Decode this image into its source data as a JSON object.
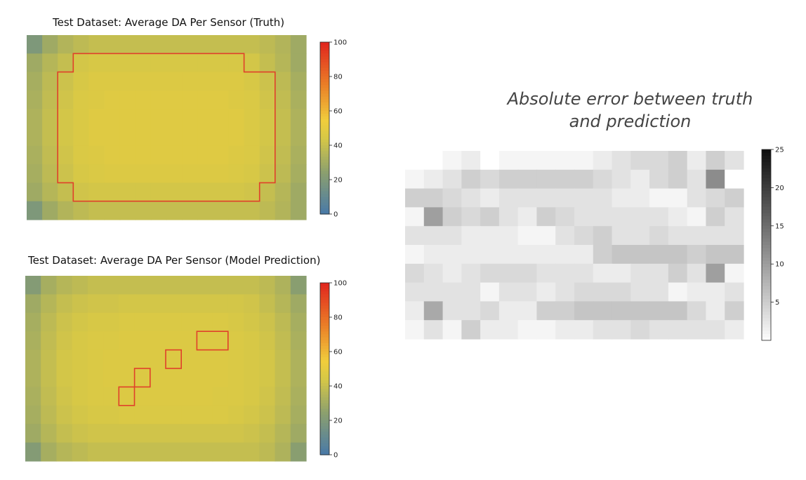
{
  "chart_data": [
    {
      "type": "heatmap",
      "title": "Test Dataset: Average  DA Per Sensor (Truth)",
      "colormap": "blue-yellow-red",
      "colorbar": {
        "min": 0,
        "max": 100,
        "ticks": [
          0,
          20,
          40,
          60,
          80,
          100
        ]
      },
      "rows": 10,
      "cols": 18,
      "values": [
        [
          20,
          30,
          35,
          38,
          40,
          40,
          40,
          40,
          40,
          40,
          40,
          40,
          40,
          40,
          40,
          38,
          35,
          30
        ],
        [
          30,
          36,
          40,
          44,
          45,
          45,
          45,
          45,
          45,
          45,
          45,
          45,
          45,
          45,
          44,
          40,
          36,
          30
        ],
        [
          32,
          38,
          42,
          45,
          47,
          47,
          47,
          47,
          47,
          47,
          47,
          47,
          47,
          47,
          45,
          42,
          38,
          32
        ],
        [
          33,
          39,
          43,
          46,
          47,
          48,
          48,
          48,
          48,
          48,
          48,
          48,
          48,
          47,
          46,
          43,
          39,
          33
        ],
        [
          34,
          40,
          44,
          46,
          48,
          48,
          48,
          48,
          48,
          48,
          48,
          48,
          48,
          48,
          46,
          44,
          40,
          34
        ],
        [
          34,
          40,
          44,
          46,
          48,
          48,
          48,
          48,
          48,
          48,
          48,
          48,
          48,
          48,
          46,
          44,
          40,
          34
        ],
        [
          33,
          39,
          43,
          46,
          47,
          48,
          48,
          48,
          48,
          48,
          48,
          48,
          48,
          47,
          46,
          43,
          39,
          33
        ],
        [
          32,
          38,
          42,
          45,
          46,
          47,
          47,
          47,
          47,
          47,
          47,
          47,
          47,
          46,
          45,
          42,
          38,
          32
        ],
        [
          30,
          36,
          40,
          43,
          44,
          44,
          44,
          44,
          44,
          44,
          44,
          44,
          44,
          44,
          43,
          40,
          36,
          30
        ],
        [
          20,
          30,
          35,
          38,
          40,
          40,
          40,
          40,
          40,
          40,
          40,
          40,
          40,
          40,
          40,
          38,
          35,
          30
        ]
      ],
      "highlight_outline": [
        [
          3,
          1
        ],
        [
          14,
          1
        ],
        [
          14,
          2
        ],
        [
          16,
          2
        ],
        [
          16,
          8
        ],
        [
          15,
          8
        ],
        [
          15,
          9
        ],
        [
          3,
          9
        ],
        [
          3,
          8
        ],
        [
          2,
          8
        ],
        [
          2,
          2
        ],
        [
          3,
          2
        ]
      ]
    },
    {
      "type": "heatmap",
      "title": "Test Dataset: Average DA Per Sensor (Model Prediction)",
      "colormap": "blue-yellow-red",
      "colorbar": {
        "min": 0,
        "max": 100,
        "ticks": [
          0,
          20,
          40,
          60,
          80,
          100
        ]
      },
      "rows": 10,
      "cols": 18,
      "values": [
        [
          22,
          32,
          36,
          38,
          40,
          40,
          40,
          40,
          40,
          40,
          40,
          40,
          40,
          40,
          40,
          38,
          34,
          24
        ],
        [
          30,
          36,
          40,
          42,
          43,
          43,
          44,
          44,
          44,
          44,
          44,
          44,
          44,
          44,
          43,
          40,
          36,
          30
        ],
        [
          32,
          38,
          42,
          44,
          45,
          45,
          46,
          46,
          46,
          46,
          46,
          46,
          46,
          45,
          44,
          42,
          38,
          32
        ],
        [
          33,
          39,
          43,
          45,
          46,
          46,
          47,
          47,
          47,
          47,
          47,
          47,
          47,
          46,
          45,
          43,
          39,
          33
        ],
        [
          34,
          40,
          44,
          45,
          46,
          47,
          47,
          47,
          47,
          47,
          47,
          47,
          47,
          46,
          45,
          44,
          40,
          34
        ],
        [
          34,
          40,
          44,
          45,
          46,
          47,
          47,
          47,
          47,
          47,
          47,
          47,
          47,
          46,
          45,
          44,
          40,
          34
        ],
        [
          33,
          39,
          43,
          45,
          46,
          46,
          47,
          47,
          47,
          47,
          47,
          47,
          46,
          46,
          45,
          43,
          39,
          33
        ],
        [
          32,
          38,
          42,
          44,
          45,
          45,
          46,
          46,
          46,
          46,
          46,
          46,
          46,
          45,
          44,
          42,
          38,
          32
        ],
        [
          30,
          36,
          40,
          42,
          43,
          43,
          43,
          43,
          43,
          43,
          43,
          43,
          43,
          43,
          42,
          40,
          36,
          30
        ],
        [
          22,
          32,
          36,
          38,
          40,
          40,
          40,
          40,
          40,
          40,
          40,
          40,
          40,
          40,
          40,
          38,
          34,
          24
        ]
      ],
      "highlight_boxes": [
        [
          6,
          6,
          1,
          1
        ],
        [
          7,
          5,
          1,
          1
        ],
        [
          9,
          4,
          1,
          1
        ],
        [
          11,
          3,
          2,
          1
        ]
      ]
    },
    {
      "type": "heatmap",
      "title": "Absolute error between truth and prediction",
      "title_lines": [
        "Absolute error between truth",
        "and prediction"
      ],
      "colormap": "greys",
      "colorbar": {
        "min": 0,
        "max": 25,
        "ticks": [
          5,
          10,
          15,
          20,
          25
        ]
      },
      "rows": 10,
      "cols": 18,
      "values": [
        [
          null,
          null,
          1,
          2,
          0,
          1,
          1,
          1,
          1,
          1,
          2,
          3,
          4,
          4,
          5,
          2,
          5,
          3
        ],
        [
          1,
          2,
          3,
          5,
          4,
          5,
          5,
          5,
          5,
          5,
          4,
          3,
          2,
          4,
          5,
          3,
          12,
          0
        ],
        [
          5,
          5,
          4,
          3,
          2,
          3,
          3,
          3,
          3,
          3,
          3,
          2,
          2,
          1,
          1,
          3,
          4,
          5
        ],
        [
          1,
          10,
          5,
          4,
          5,
          3,
          2,
          5,
          4,
          3,
          3,
          3,
          3,
          3,
          2,
          1,
          5,
          3
        ],
        [
          3,
          3,
          3,
          2,
          2,
          2,
          1,
          1,
          3,
          4,
          5,
          3,
          3,
          4,
          3,
          3,
          3,
          3
        ],
        [
          1,
          2,
          2,
          2,
          2,
          2,
          2,
          2,
          2,
          2,
          5,
          6,
          6,
          6,
          6,
          5,
          6,
          6
        ],
        [
          4,
          3,
          2,
          3,
          4,
          4,
          4,
          3,
          3,
          3,
          2,
          2,
          3,
          3,
          5,
          3,
          10,
          1
        ],
        [
          3,
          3,
          3,
          3,
          1,
          3,
          3,
          2,
          3,
          4,
          4,
          4,
          3,
          3,
          1,
          2,
          2,
          3
        ],
        [
          2,
          9,
          3,
          3,
          4,
          2,
          2,
          5,
          5,
          6,
          6,
          6,
          6,
          6,
          6,
          4,
          2,
          5
        ],
        [
          1,
          3,
          1,
          5,
          2,
          2,
          1,
          1,
          2,
          2,
          3,
          3,
          4,
          3,
          3,
          3,
          3,
          2
        ]
      ]
    }
  ]
}
